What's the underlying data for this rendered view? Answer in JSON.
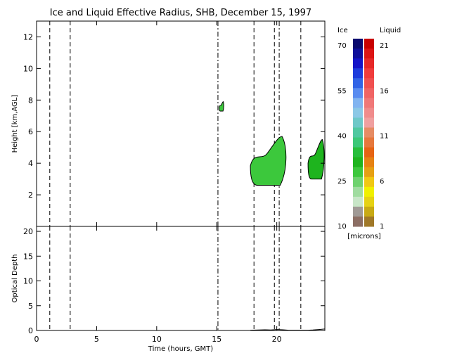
{
  "chart_data": [
    {
      "type": "heatmap",
      "title": "Ice and Liquid Effective Radius, SHB, December 15, 1997",
      "xlabel": "",
      "ylabel": "Height [km,AGL]",
      "xlim": [
        0,
        24
      ],
      "ylim": [
        0,
        13
      ],
      "xticks": [
        0,
        5,
        10,
        15,
        20
      ],
      "yticks": [
        2,
        4,
        6,
        8,
        10,
        12
      ],
      "vertical_dashed_lines": [
        1.1,
        2.8,
        18.1,
        19.8,
        22.0
      ],
      "vertical_dashdot_lines": [
        15.1,
        20.2
      ],
      "cloud_regions": [
        {
          "x_start": 17.8,
          "x_end": 20.9,
          "bottom_km": 2.6,
          "top_km": 5.7,
          "phase": "ice",
          "effective_radius_microns": 28
        },
        {
          "x_start": 15.2,
          "x_end": 15.6,
          "bottom_km": 7.3,
          "top_km": 7.9,
          "phase": "ice",
          "effective_radius_microns": 26
        },
        {
          "x_start": 22.6,
          "x_end": 24.0,
          "bottom_km": 3.0,
          "top_km": 5.5,
          "phase": "ice",
          "effective_radius_microns": 30
        }
      ]
    },
    {
      "type": "line",
      "xlabel": "Time (hours, GMT)",
      "ylabel": "Optical Depth",
      "xlim": [
        0,
        24
      ],
      "ylim": [
        0,
        21
      ],
      "xticks": [
        0,
        5,
        10,
        15,
        20
      ],
      "yticks": [
        0,
        5,
        10,
        15,
        20
      ],
      "series": [
        {
          "x": [
            17.8,
            18.5,
            19.0,
            19.5,
            20.0,
            20.5,
            21.0,
            22.6,
            23.0,
            23.5,
            24.0
          ],
          "values": [
            0.05,
            0.1,
            0.15,
            0.1,
            0.2,
            0.15,
            0.05,
            0.05,
            0.1,
            0.2,
            0.3
          ]
        }
      ]
    }
  ],
  "colorbar": {
    "ice_label": "Ice",
    "liquid_label": "Liquid",
    "units_label": "[microns]",
    "ice_ticks": [
      "70",
      "55",
      "40",
      "25",
      "10"
    ],
    "liquid_ticks": [
      "21",
      "16",
      "11",
      "6",
      "1"
    ],
    "ice_colors": [
      "#0a0a6e",
      "#0f0f9a",
      "#1414c8",
      "#1e3cdc",
      "#3264e6",
      "#5a8cf0",
      "#82b4f0",
      "#8cc8e6",
      "#6ec8c8",
      "#50c8a0",
      "#3cc878",
      "#28be3c",
      "#1eb41e",
      "#3cc83c",
      "#6ed26e",
      "#a0dca0",
      "#c8e6c8",
      "#a09a96",
      "#8c6e64"
    ],
    "liquid_colors": [
      "#c80000",
      "#dc1414",
      "#e62828",
      "#f03c3c",
      "#f05050",
      "#f06464",
      "#f07878",
      "#f08c8c",
      "#f0a0a0",
      "#e68c64",
      "#e6783c",
      "#e66414",
      "#e68214",
      "#e6a014",
      "#f0c814",
      "#f0f000",
      "#e6d214",
      "#c8aa14",
      "#a07828"
    ]
  }
}
